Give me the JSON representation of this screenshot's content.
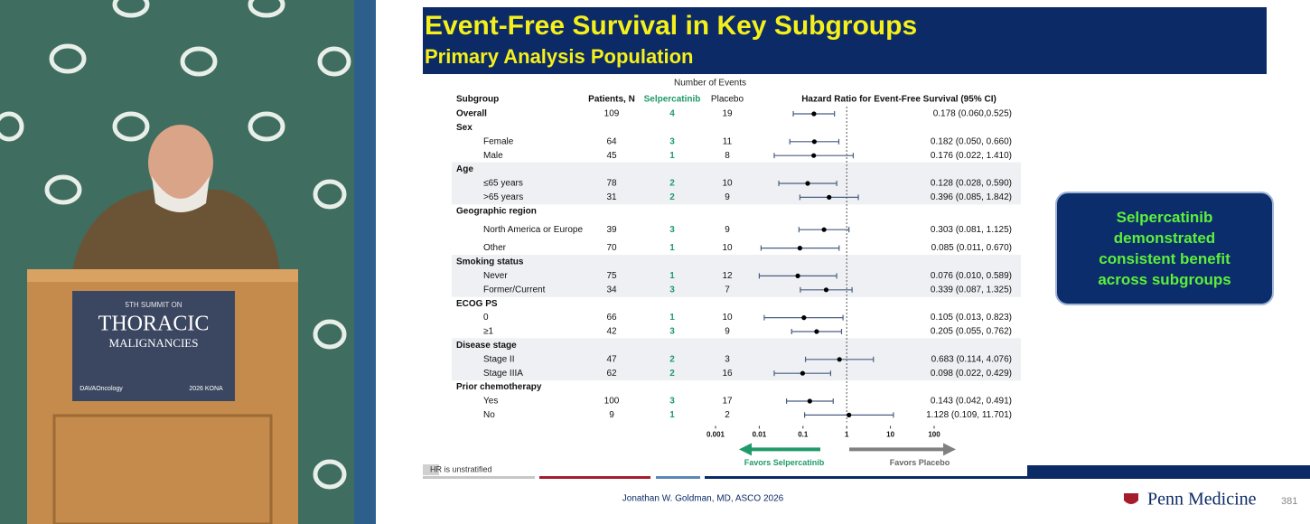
{
  "chart_data": {
    "type": "forest",
    "title": "Event-Free Survival in Key Subgroups",
    "subtitle": "Primary Analysis Population",
    "column_group_label": "Number of Events",
    "columns": [
      "Subgroup",
      "Patients, N",
      "Selpercatinib",
      "Placebo",
      "Hazard Ratio for Event-Free Survival (95% CI)"
    ],
    "xscale": "log",
    "xlim": [
      0.001,
      100
    ],
    "xticks": [
      0.001,
      0.01,
      0.1,
      1,
      10,
      100
    ],
    "reference_line": 1,
    "point_color": "#000000",
    "ci_color": "#4a5d82",
    "selpercatinib_color": "#1f9a6a",
    "overall": {
      "label": "Overall",
      "patients": 109,
      "selpercatinib_events": 4,
      "placebo_events": 19,
      "hr": 0.178,
      "ci": [
        0.06,
        0.525
      ],
      "hr_label": "0.178 (0.060,0.525)"
    },
    "groups": [
      {
        "name": "Sex",
        "rows": [
          {
            "label": "Female",
            "patients": 64,
            "selpercatinib_events": 3,
            "placebo_events": 11,
            "hr": 0.182,
            "ci": [
              0.05,
              0.66
            ],
            "hr_label": "0.182 (0.050, 0.660)"
          },
          {
            "label": "Male",
            "patients": 45,
            "selpercatinib_events": 1,
            "placebo_events": 8,
            "hr": 0.176,
            "ci": [
              0.022,
              1.41
            ],
            "hr_label": "0.176 (0.022, 1.410)"
          }
        ]
      },
      {
        "name": "Age",
        "rows": [
          {
            "label": "≤65 years",
            "patients": 78,
            "selpercatinib_events": 2,
            "placebo_events": 10,
            "hr": 0.128,
            "ci": [
              0.028,
              0.59
            ],
            "hr_label": "0.128 (0.028, 0.590)"
          },
          {
            "label": ">65 years",
            "patients": 31,
            "selpercatinib_events": 2,
            "placebo_events": 9,
            "hr": 0.396,
            "ci": [
              0.085,
              1.842
            ],
            "hr_label": "0.396 (0.085, 1.842)"
          }
        ]
      },
      {
        "name": "Geographic region",
        "rows": [
          {
            "label": "North America or Europe",
            "patients": 39,
            "selpercatinib_events": 3,
            "placebo_events": 9,
            "hr": 0.303,
            "ci": [
              0.081,
              1.125
            ],
            "hr_label": "0.303 (0.081, 1.125)"
          },
          {
            "label": "Other",
            "patients": 70,
            "selpercatinib_events": 1,
            "placebo_events": 10,
            "hr": 0.085,
            "ci": [
              0.011,
              0.67
            ],
            "hr_label": "0.085 (0.011, 0.670)"
          }
        ]
      },
      {
        "name": "Smoking status",
        "rows": [
          {
            "label": "Never",
            "patients": 75,
            "selpercatinib_events": 1,
            "placebo_events": 12,
            "hr": 0.076,
            "ci": [
              0.01,
              0.589
            ],
            "hr_label": "0.076 (0.010, 0.589)"
          },
          {
            "label": "Former/Current",
            "patients": 34,
            "selpercatinib_events": 3,
            "placebo_events": 7,
            "hr": 0.339,
            "ci": [
              0.087,
              1.325
            ],
            "hr_label": "0.339 (0.087, 1.325)"
          }
        ]
      },
      {
        "name": "ECOG PS",
        "rows": [
          {
            "label": "0",
            "patients": 66,
            "selpercatinib_events": 1,
            "placebo_events": 10,
            "hr": 0.105,
            "ci": [
              0.013,
              0.823
            ],
            "hr_label": "0.105 (0.013, 0.823)"
          },
          {
            "label": "≥1",
            "patients": 42,
            "selpercatinib_events": 3,
            "placebo_events": 9,
            "hr": 0.205,
            "ci": [
              0.055,
              0.762
            ],
            "hr_label": "0.205 (0.055, 0.762)"
          }
        ]
      },
      {
        "name": "Disease stage",
        "rows": [
          {
            "label": "Stage II",
            "patients": 47,
            "selpercatinib_events": 2,
            "placebo_events": 3,
            "hr": 0.683,
            "ci": [
              0.114,
              4.076
            ],
            "hr_label": "0.683 (0.114, 4.076)"
          },
          {
            "label": "Stage IIIA",
            "patients": 62,
            "selpercatinib_events": 2,
            "placebo_events": 16,
            "hr": 0.098,
            "ci": [
              0.022,
              0.429
            ],
            "hr_label": "0.098 (0.022, 0.429)"
          }
        ]
      },
      {
        "name": "Prior chemotherapy",
        "rows": [
          {
            "label": "Yes",
            "patients": 100,
            "selpercatinib_events": 3,
            "placebo_events": 17,
            "hr": 0.143,
            "ci": [
              0.042,
              0.491
            ],
            "hr_label": "0.143 (0.042, 0.491)"
          },
          {
            "label": "No",
            "patients": 9,
            "selpercatinib_events": 1,
            "placebo_events": 2,
            "hr": 1.128,
            "ci": [
              0.109,
              11.701
            ],
            "hr_label": "1.128 (0.109, 11.701)"
          }
        ]
      }
    ],
    "favors_left": "Favors Selpercatinib",
    "favors_right": "Favors Placebo",
    "footnote": "HR is unstratified"
  },
  "callout": "Selpercatinib demonstrated consistent benefit across subgroups",
  "footer": {
    "presenter": "Jonathan W. Goldman, MD, ASCO 2026",
    "brand": "Penn Medicine",
    "slide_number": "381"
  },
  "video": {
    "podium_text": [
      "5TH SUMMIT ON",
      "THORACIC",
      "MALIGNANCIES",
      "DAVAOncology",
      "2026 KONA"
    ]
  }
}
